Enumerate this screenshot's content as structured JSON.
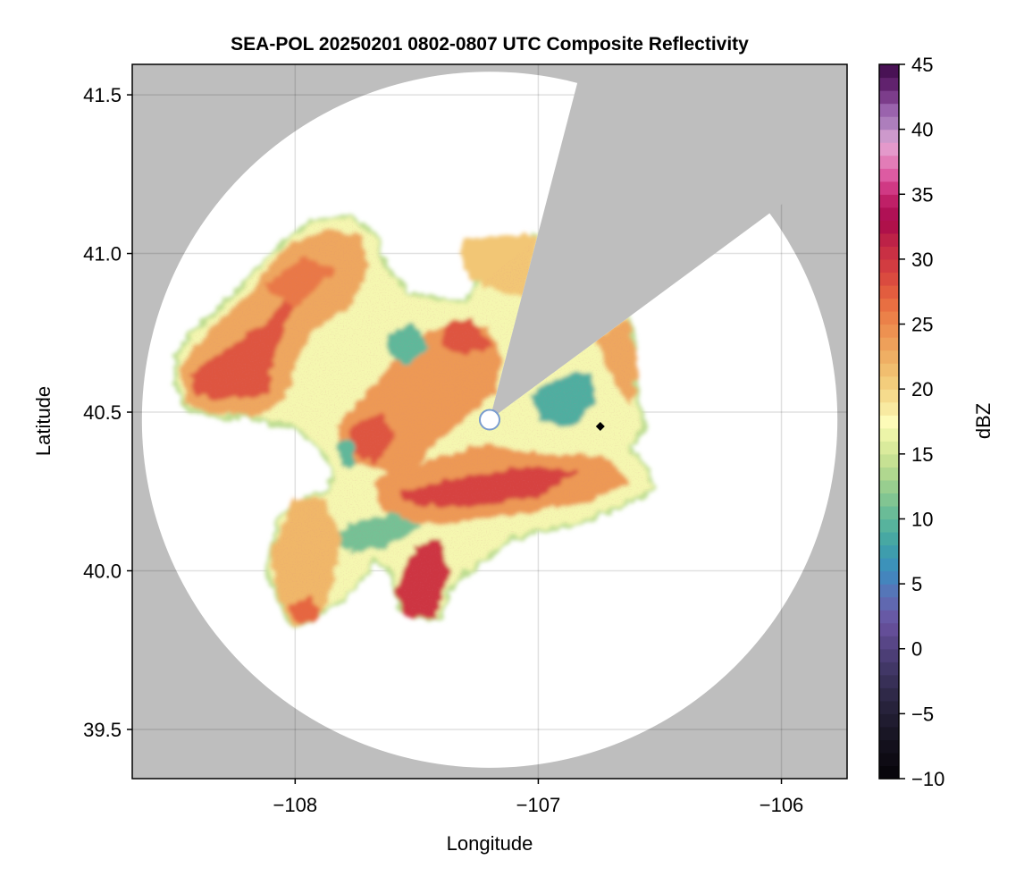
{
  "chart_data": {
    "type": "heatmap",
    "subtype": "radar-ppi-composite",
    "title": "SEA-POL 20250201 0802-0807 UTC Composite Reflectivity",
    "xlabel": "Longitude",
    "ylabel": "Latitude",
    "xlim": [
      -108.67,
      -105.73
    ],
    "ylim": [
      39.345,
      41.596
    ],
    "xticks": [
      -108,
      -107,
      -106
    ],
    "xtick_labels": [
      "−108",
      "−107",
      "−106"
    ],
    "yticks": [
      39.5,
      40.0,
      40.5,
      41.0,
      41.5
    ],
    "ytick_labels": [
      "39.5",
      "40.0",
      "40.5",
      "41.0",
      "41.5"
    ],
    "grid": true,
    "colorbar": {
      "label": "dBZ",
      "range": [
        -10,
        45
      ],
      "step": 1,
      "ticks": [
        -10,
        -5,
        0,
        5,
        10,
        15,
        20,
        25,
        30,
        35,
        40,
        45
      ],
      "tick_labels": [
        "−10",
        "−5",
        "0",
        "5",
        "10",
        "15",
        "20",
        "25",
        "30",
        "35",
        "40",
        "45"
      ],
      "placement": "right",
      "stops": [
        [
          -10,
          "#050308"
        ],
        [
          -7,
          "#161320"
        ],
        [
          -4,
          "#2a2540"
        ],
        [
          -1,
          "#463a6e"
        ],
        [
          2,
          "#6a52a0"
        ],
        [
          4,
          "#5d6fb5"
        ],
        [
          6,
          "#3b8cc0"
        ],
        [
          8,
          "#3fa3a6"
        ],
        [
          10,
          "#5fb89a"
        ],
        [
          12,
          "#8cc98f"
        ],
        [
          14,
          "#bcdc8f"
        ],
        [
          16,
          "#e4f0a0"
        ],
        [
          17.5,
          "#fdfbb8"
        ],
        [
          19,
          "#f6e295"
        ],
        [
          21,
          "#f2c674"
        ],
        [
          23,
          "#eea75e"
        ],
        [
          25,
          "#ec8a4c"
        ],
        [
          27,
          "#e6663f"
        ],
        [
          29,
          "#d6423f"
        ],
        [
          31,
          "#c42a45"
        ],
        [
          33,
          "#a8094c"
        ],
        [
          35,
          "#c62870"
        ],
        [
          36,
          "#da4a98"
        ],
        [
          38,
          "#e58cc1"
        ],
        [
          39,
          "#e2a6d4"
        ],
        [
          40,
          "#b78cc4"
        ],
        [
          41.5,
          "#9a63ad"
        ],
        [
          43,
          "#6d2a7a"
        ],
        [
          45,
          "#3d0a48"
        ]
      ]
    },
    "radar": {
      "lon": -107.2,
      "lat": 40.476,
      "max_range_km": 121,
      "blocked_azimuth_deg": [
        14.6,
        53.6
      ]
    },
    "no_coverage_color": "#bebebe",
    "marker": {
      "lon": -106.745,
      "lat": 40.455,
      "shape": "diamond",
      "color": "#000000"
    },
    "echo_regions": [
      {
        "dbz": 17,
        "poly": [
          [
            -108.48,
            40.67
          ],
          [
            -108.42,
            40.74
          ],
          [
            -108.24,
            40.87
          ],
          [
            -108.11,
            40.98
          ],
          [
            -107.94,
            41.09
          ],
          [
            -107.78,
            41.11
          ],
          [
            -107.67,
            41.05
          ],
          [
            -107.63,
            40.95
          ],
          [
            -107.54,
            40.87
          ],
          [
            -107.3,
            40.83
          ],
          [
            -107.25,
            40.9
          ],
          [
            -107.16,
            40.95
          ],
          [
            -107.01,
            41.05
          ],
          [
            -106.94,
            41.05
          ],
          [
            -106.64,
            40.81
          ],
          [
            -106.61,
            40.7
          ],
          [
            -106.62,
            40.62
          ],
          [
            -106.59,
            40.5
          ],
          [
            -106.57,
            40.45
          ],
          [
            -106.64,
            40.39
          ],
          [
            -106.57,
            40.33
          ],
          [
            -106.53,
            40.26
          ],
          [
            -106.64,
            40.22
          ],
          [
            -106.79,
            40.17
          ],
          [
            -106.94,
            40.14
          ],
          [
            -107.12,
            40.11
          ],
          [
            -107.21,
            40.05
          ],
          [
            -107.3,
            40.0
          ],
          [
            -107.38,
            39.94
          ],
          [
            -107.41,
            39.86
          ],
          [
            -107.49,
            39.86
          ],
          [
            -107.56,
            39.88
          ],
          [
            -107.6,
            40.0
          ],
          [
            -107.67,
            40.05
          ],
          [
            -107.71,
            40.0
          ],
          [
            -107.82,
            39.91
          ],
          [
            -107.93,
            39.86
          ],
          [
            -108.0,
            39.83
          ],
          [
            -108.04,
            39.88
          ],
          [
            -108.11,
            40.0
          ],
          [
            -108.07,
            40.11
          ],
          [
            -108.06,
            40.16
          ],
          [
            -107.96,
            40.22
          ],
          [
            -107.85,
            40.25
          ],
          [
            -107.83,
            40.33
          ],
          [
            -107.89,
            40.39
          ],
          [
            -108.0,
            40.46
          ],
          [
            -108.11,
            40.47
          ],
          [
            -108.18,
            40.5
          ],
          [
            -108.31,
            40.49
          ],
          [
            -108.44,
            40.52
          ],
          [
            -108.48,
            40.59
          ]
        ]
      },
      {
        "dbz": 21,
        "poly": [
          [
            -107.3,
            41.04
          ],
          [
            -107.01,
            41.05
          ],
          [
            -107.06,
            40.87
          ],
          [
            -107.21,
            40.9
          ],
          [
            -107.3,
            40.95
          ]
        ]
      },
      {
        "dbz": 23,
        "poly": [
          [
            -108.46,
            40.64
          ],
          [
            -108.37,
            40.73
          ],
          [
            -108.18,
            40.87
          ],
          [
            -108.04,
            41.01
          ],
          [
            -107.89,
            41.07
          ],
          [
            -107.74,
            41.05
          ],
          [
            -107.71,
            40.95
          ],
          [
            -107.78,
            40.84
          ],
          [
            -107.93,
            40.76
          ],
          [
            -108.0,
            40.67
          ],
          [
            -108.04,
            40.56
          ],
          [
            -108.15,
            40.5
          ],
          [
            -108.33,
            40.5
          ],
          [
            -108.44,
            40.53
          ]
        ]
      },
      {
        "dbz": 28,
        "poly": [
          [
            -108.42,
            40.62
          ],
          [
            -108.26,
            40.7
          ],
          [
            -108.11,
            40.78
          ],
          [
            -108.0,
            40.87
          ],
          [
            -108.11,
            40.67
          ],
          [
            -108.11,
            40.56
          ],
          [
            -108.29,
            40.55
          ],
          [
            -108.4,
            40.56
          ]
        ]
      },
      {
        "dbz": 26,
        "poly": [
          [
            -108.11,
            40.9
          ],
          [
            -107.96,
            40.98
          ],
          [
            -107.85,
            40.95
          ],
          [
            -108.0,
            40.84
          ]
        ]
      },
      {
        "dbz": 24,
        "poly": [
          [
            -107.82,
            40.45
          ],
          [
            -107.63,
            40.62
          ],
          [
            -107.49,
            40.73
          ],
          [
            -107.34,
            40.78
          ],
          [
            -107.21,
            40.76
          ],
          [
            -107.16,
            40.67
          ],
          [
            -107.19,
            40.56
          ],
          [
            -107.34,
            40.47
          ],
          [
            -107.45,
            40.39
          ],
          [
            -107.56,
            40.28
          ],
          [
            -107.67,
            40.33
          ],
          [
            -107.78,
            40.36
          ]
        ]
      },
      {
        "dbz": 28,
        "poly": [
          [
            -107.76,
            40.45
          ],
          [
            -107.65,
            40.49
          ],
          [
            -107.6,
            40.42
          ],
          [
            -107.67,
            40.35
          ],
          [
            -107.75,
            40.38
          ]
        ]
      },
      {
        "dbz": 28,
        "poly": [
          [
            -107.38,
            40.77
          ],
          [
            -107.27,
            40.78
          ],
          [
            -107.21,
            40.71
          ],
          [
            -107.3,
            40.69
          ],
          [
            -107.38,
            40.71
          ]
        ]
      },
      {
        "dbz": 24,
        "poly": [
          [
            -107.67,
            40.28
          ],
          [
            -107.49,
            40.33
          ],
          [
            -107.23,
            40.39
          ],
          [
            -106.94,
            40.36
          ],
          [
            -106.72,
            40.35
          ],
          [
            -106.64,
            40.28
          ],
          [
            -106.83,
            40.22
          ],
          [
            -107.08,
            40.19
          ],
          [
            -107.3,
            40.16
          ],
          [
            -107.49,
            40.16
          ],
          [
            -107.63,
            40.19
          ]
        ]
      },
      {
        "dbz": 29,
        "poly": [
          [
            -107.56,
            40.24
          ],
          [
            -107.3,
            40.29
          ],
          [
            -107.05,
            40.32
          ],
          [
            -106.86,
            40.31
          ],
          [
            -107.01,
            40.24
          ],
          [
            -107.3,
            40.21
          ],
          [
            -107.49,
            40.21
          ]
        ]
      },
      {
        "dbz": 10,
        "poly": [
          [
            -107.61,
            40.74
          ],
          [
            -107.52,
            40.77
          ],
          [
            -107.46,
            40.71
          ],
          [
            -107.54,
            40.66
          ],
          [
            -107.61,
            40.69
          ]
        ]
      },
      {
        "dbz": 9,
        "poly": [
          [
            -107.02,
            40.55
          ],
          [
            -106.93,
            40.6
          ],
          [
            -106.79,
            40.62
          ],
          [
            -106.78,
            40.53
          ],
          [
            -106.87,
            40.46
          ],
          [
            -106.98,
            40.48
          ]
        ]
      },
      {
        "dbz": 11,
        "poly": [
          [
            -107.83,
            40.11
          ],
          [
            -107.74,
            40.15
          ],
          [
            -107.6,
            40.17
          ],
          [
            -107.49,
            40.14
          ],
          [
            -107.63,
            40.08
          ],
          [
            -107.78,
            40.07
          ]
        ]
      },
      {
        "dbz": 10,
        "poly": [
          [
            -107.82,
            40.39
          ],
          [
            -107.77,
            40.4
          ],
          [
            -107.76,
            40.35
          ],
          [
            -107.8,
            40.33
          ]
        ]
      },
      {
        "dbz": 22,
        "poly": [
          [
            -108.09,
            40.05
          ],
          [
            -108.0,
            40.22
          ],
          [
            -107.89,
            40.22
          ],
          [
            -107.82,
            40.11
          ],
          [
            -107.85,
            39.97
          ],
          [
            -107.89,
            39.88
          ],
          [
            -108.0,
            39.83
          ],
          [
            -108.07,
            39.94
          ]
        ]
      },
      {
        "dbz": 27,
        "poly": [
          [
            -108.02,
            39.88
          ],
          [
            -107.94,
            39.91
          ],
          [
            -107.91,
            39.86
          ],
          [
            -107.98,
            39.84
          ]
        ]
      },
      {
        "dbz": 30,
        "poly": [
          [
            -107.58,
            39.93
          ],
          [
            -107.5,
            40.07
          ],
          [
            -107.41,
            40.09
          ],
          [
            -107.38,
            40.0
          ],
          [
            -107.43,
            39.86
          ],
          [
            -107.54,
            39.86
          ]
        ]
      },
      {
        "dbz": 23,
        "poly": [
          [
            -106.75,
            40.73
          ],
          [
            -106.64,
            40.78
          ],
          [
            -106.6,
            40.67
          ],
          [
            -106.62,
            40.53
          ],
          [
            -106.7,
            40.62
          ]
        ]
      }
    ]
  }
}
